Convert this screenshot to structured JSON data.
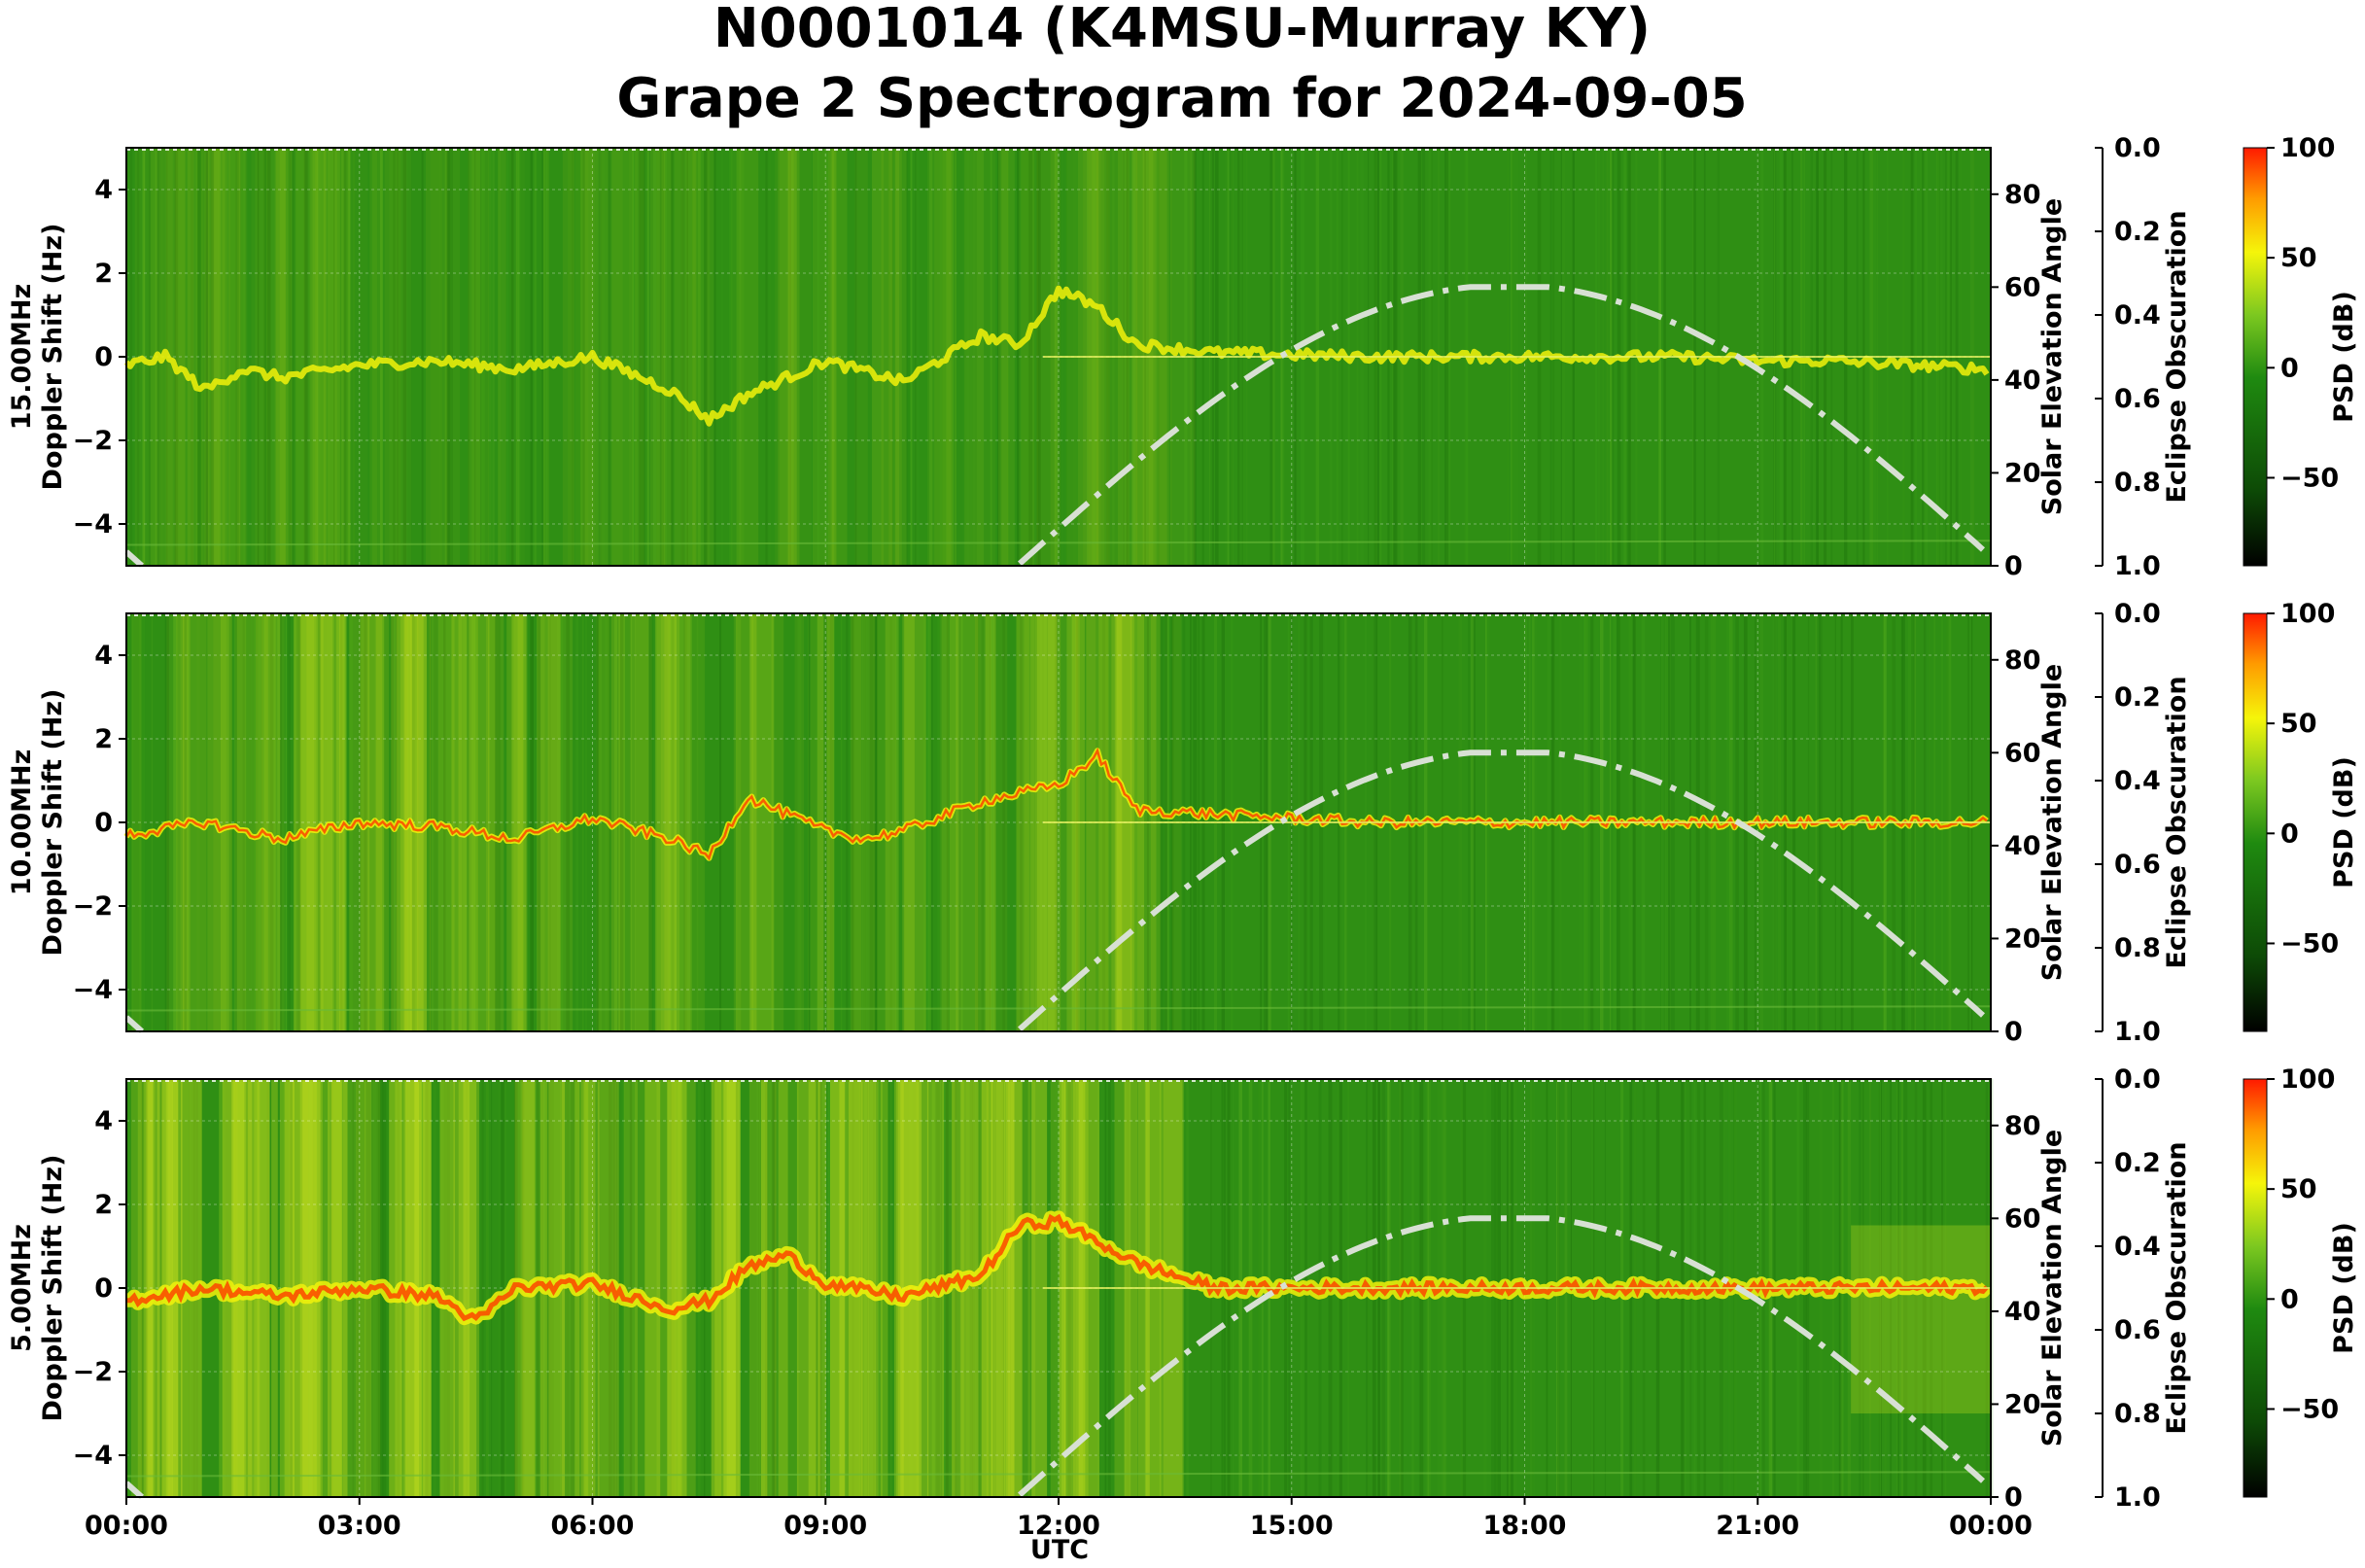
{
  "title_line1": "N0001014 (K4MSU-Murray KY)",
  "title_line2": "Grape 2 Spectrogram for 2024-09-05",
  "xlabel": "UTC",
  "x_tick_labels": [
    "00:00",
    "03:00",
    "06:00",
    "09:00",
    "12:00",
    "15:00",
    "18:00",
    "21:00",
    "00:00"
  ],
  "right_axis_label": "Solar Elevation Angle",
  "obscuration_label": "Eclipse Obscuration",
  "colorbar_label": "PSD (dB)",
  "colors": {
    "spectro_dark": "#1e7a0c",
    "spectro_mid": "#2f8f14",
    "trace_yellow": "#f2f20a",
    "trace_red": "#ff3c00",
    "solar_curve": "#d8e0d4"
  },
  "chart_data": [
    {
      "type": "heatmap",
      "panel": "15.00MHz",
      "ylabel_line1": "15.00MHz",
      "ylabel_line2": "Doppler Shift (Hz)",
      "x_unit": "UTC hours",
      "xlim": [
        0,
        24
      ],
      "ylim": [
        -5,
        5
      ],
      "y_ticks": [
        4,
        2,
        0,
        -2,
        -4
      ],
      "right_ylim": [
        0,
        90
      ],
      "right_ticks": [
        80,
        60,
        40,
        20,
        0
      ],
      "obscuration_ticks": [
        "0.0",
        "0.2",
        "0.4",
        "0.6",
        "0.8",
        "1.0"
      ],
      "colorbar_ticks": [
        100,
        50,
        0,
        -50
      ],
      "colorbar_range": [
        -90,
        100
      ],
      "doppler_trace": {
        "x": [
          0,
          0.5,
          1,
          1.5,
          2,
          3,
          4,
          5,
          6,
          7,
          7.5,
          8,
          9,
          10,
          11,
          11.5,
          12,
          12.5,
          13,
          14,
          15,
          16,
          17,
          18,
          19,
          20,
          21,
          22,
          23,
          24
        ],
        "y": [
          -0.2,
          0.0,
          -0.8,
          -0.3,
          -0.5,
          -0.2,
          -0.1,
          -0.3,
          0.0,
          -0.8,
          -1.5,
          -0.9,
          -0.1,
          -0.6,
          0.5,
          0.3,
          1.6,
          1.2,
          0.3,
          0.1,
          0.05,
          0.0,
          0.0,
          0.0,
          0.0,
          0.0,
          -0.1,
          -0.1,
          -0.2,
          -0.3
        ]
      },
      "solar_elevation": {
        "x": [
          0,
          11.5,
          13,
          15,
          17.8,
          20,
          22,
          24
        ],
        "y": [
          3,
          0,
          16,
          43,
          60,
          50,
          25,
          3
        ]
      }
    },
    {
      "type": "heatmap",
      "panel": "10.00MHz",
      "ylabel_line1": "10.00MHz",
      "ylabel_line2": "Doppler Shift (Hz)",
      "x_unit": "UTC hours",
      "xlim": [
        0,
        24
      ],
      "ylim": [
        -5,
        5
      ],
      "y_ticks": [
        4,
        2,
        0,
        -2,
        -4
      ],
      "right_ylim": [
        0,
        90
      ],
      "right_ticks": [
        80,
        60,
        40,
        20,
        0
      ],
      "obscuration_ticks": [
        "0.0",
        "0.2",
        "0.4",
        "0.6",
        "0.8",
        "1.0"
      ],
      "colorbar_ticks": [
        100,
        50,
        0,
        -50
      ],
      "colorbar_range": [
        -90,
        100
      ],
      "doppler_trace": {
        "x": [
          0,
          1,
          2,
          3,
          4,
          5,
          6,
          7,
          7.5,
          8,
          9,
          9.5,
          10,
          11,
          12,
          12.5,
          13,
          14,
          15,
          16,
          17,
          18,
          19,
          20,
          21,
          22,
          23,
          24
        ],
        "y": [
          -0.3,
          0.0,
          -0.4,
          0.0,
          -0.1,
          -0.4,
          0.1,
          -0.4,
          -0.8,
          0.6,
          -0.2,
          -0.4,
          -0.2,
          0.5,
          0.9,
          1.6,
          0.3,
          0.2,
          0.1,
          0.0,
          0.0,
          0.0,
          0.0,
          0.0,
          0.0,
          0.0,
          0.0,
          0.0
        ]
      },
      "solar_elevation": {
        "x": [
          0,
          11.5,
          13,
          15,
          17.8,
          20,
          22,
          24
        ],
        "y": [
          3,
          0,
          16,
          43,
          60,
          50,
          25,
          3
        ]
      }
    },
    {
      "type": "heatmap",
      "panel": "5.00MHz",
      "ylabel_line1": "5.00MHz",
      "ylabel_line2": "Doppler Shift (Hz)",
      "x_unit": "UTC hours",
      "xlim": [
        0,
        24
      ],
      "ylim": [
        -5,
        5
      ],
      "y_ticks": [
        4,
        2,
        0,
        -2,
        -4
      ],
      "right_ylim": [
        0,
        90
      ],
      "right_ticks": [
        80,
        60,
        40,
        20,
        0
      ],
      "obscuration_ticks": [
        "0.0",
        "0.2",
        "0.4",
        "0.6",
        "0.8",
        "1.0"
      ],
      "colorbar_ticks": [
        100,
        50,
        0,
        -50
      ],
      "colorbar_range": [
        -90,
        100
      ],
      "doppler_trace": {
        "x": [
          0,
          1,
          2,
          3,
          4,
          4.5,
          5,
          6,
          7,
          7.5,
          8,
          8.5,
          9,
          10,
          11,
          11.5,
          12,
          12.5,
          13,
          14,
          15,
          16,
          17,
          18,
          19,
          20,
          21,
          22,
          23,
          24
        ],
        "y": [
          -0.3,
          0.0,
          -0.2,
          0.0,
          -0.2,
          -0.8,
          0.0,
          0.1,
          -0.5,
          -0.3,
          0.5,
          0.8,
          0.1,
          -0.2,
          0.3,
          1.5,
          1.6,
          1.1,
          0.6,
          0.0,
          0.0,
          0.0,
          0.0,
          0.0,
          0.0,
          0.0,
          0.0,
          0.0,
          0.0,
          0.0
        ]
      },
      "solar_elevation": {
        "x": [
          0,
          11.5,
          13,
          15,
          17.8,
          20,
          22,
          24
        ],
        "y": [
          3,
          0,
          16,
          43,
          60,
          50,
          25,
          3
        ]
      }
    }
  ]
}
